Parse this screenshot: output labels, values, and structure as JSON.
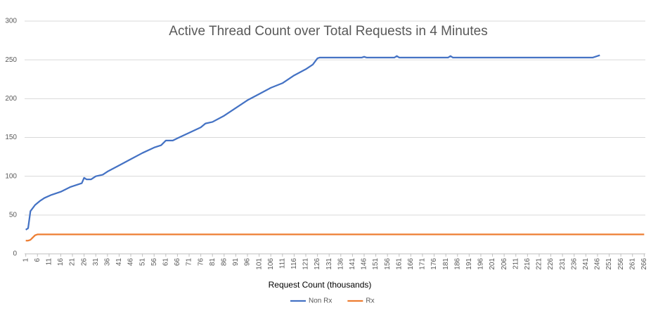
{
  "chart_data": {
    "type": "line",
    "title": "Active Thread Count over Total Requests in 4 Minutes",
    "x_label": "Request Count (thousands)",
    "xlim": [
      0.5,
      266.5
    ],
    "xticks": [
      1,
      6,
      11,
      16,
      21,
      26,
      31,
      36,
      41,
      46,
      51,
      56,
      61,
      66,
      71,
      76,
      81,
      86,
      91,
      96,
      101,
      106,
      111,
      116,
      121,
      126,
      131,
      136,
      141,
      146,
      151,
      156,
      161,
      166,
      171,
      176,
      181,
      186,
      191,
      196,
      201,
      206,
      211,
      216,
      221,
      226,
      231,
      236,
      241,
      246,
      251,
      256,
      261,
      266
    ],
    "ylim": [
      0,
      300
    ],
    "yticks": [
      0,
      50,
      100,
      150,
      200,
      250,
      300
    ],
    "grid": true,
    "legend": "bottom",
    "series": [
      {
        "name": "Non Rx",
        "color": "#4472c4",
        "x": [
          1,
          2,
          3,
          5,
          7,
          9,
          12,
          16,
          20,
          25,
          26,
          27,
          29,
          31,
          34,
          36,
          41,
          46,
          51,
          56,
          59,
          61,
          64,
          66,
          71,
          76,
          78,
          81,
          86,
          91,
          96,
          101,
          106,
          111,
          116,
          121,
          124,
          126,
          127,
          145,
          146,
          147,
          159,
          160,
          161,
          182,
          183,
          184,
          244,
          247
        ],
        "values": [
          31,
          33,
          55,
          63,
          68,
          72,
          76,
          80,
          86,
          91,
          98,
          96,
          96,
          100,
          102,
          106,
          114,
          122,
          130,
          137,
          140,
          146,
          146,
          149,
          156,
          163,
          168,
          170,
          178,
          188,
          198,
          206,
          214,
          220,
          230,
          238,
          244,
          252,
          253,
          253,
          254,
          253,
          253,
          255,
          253,
          253,
          255,
          253,
          253,
          256
        ]
      },
      {
        "name": "Rx",
        "color": "#ed7d31",
        "x": [
          1,
          2,
          3,
          4,
          5,
          6,
          266
        ],
        "values": [
          17,
          17,
          18,
          21,
          24,
          25,
          25
        ]
      }
    ]
  }
}
